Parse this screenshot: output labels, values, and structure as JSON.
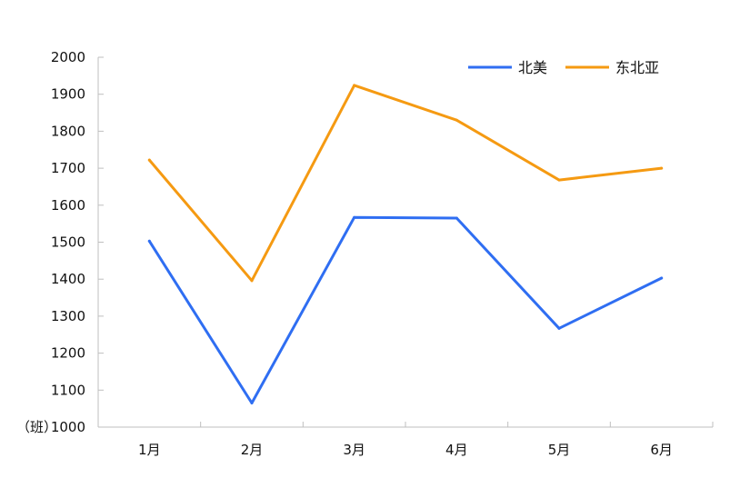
{
  "chart_data": {
    "type": "line",
    "title": "",
    "xlabel": "",
    "ylabel": "（班）",
    "categories": [
      "1月",
      "2月",
      "3月",
      "4月",
      "5月",
      "6月"
    ],
    "ylim": [
      1000,
      2000
    ],
    "yticks": [
      1000,
      1100,
      1200,
      1300,
      1400,
      1500,
      1600,
      1700,
      1800,
      1900,
      2000
    ],
    "grid": false,
    "legend_position": "top-right",
    "series": [
      {
        "name": "北美",
        "color": "#2f6ef2",
        "values": [
          1503,
          1065,
          1567,
          1565,
          1267,
          1403
        ]
      },
      {
        "name": "东北亚",
        "color": "#f59a12",
        "values": [
          1722,
          1396,
          1924,
          1830,
          1668,
          1700
        ]
      }
    ]
  }
}
